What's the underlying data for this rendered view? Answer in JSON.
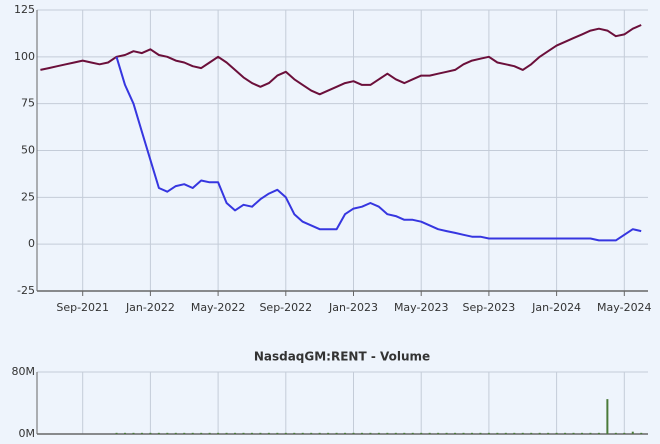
{
  "chart_data": [
    {
      "type": "line",
      "x": [
        5.5,
        6,
        6.5,
        7,
        7.5,
        8,
        8.5,
        9,
        9.5,
        10,
        10.5,
        11,
        11.5,
        12,
        12.5,
        13,
        13.5,
        14,
        14.5,
        15,
        15.5,
        16,
        16.5,
        17,
        17.5,
        18,
        18.5,
        19,
        19.5,
        20,
        20.5,
        21,
        21.5,
        22,
        22.5,
        23,
        23.5,
        24,
        24.5,
        25,
        25.5,
        26,
        26.5,
        27,
        27.5,
        28,
        28.5,
        29,
        29.5,
        30,
        30.5,
        31,
        31.5,
        32,
        32.5,
        33,
        33.5,
        34,
        34.5,
        35,
        35.5,
        36,
        36.5,
        37,
        37.5,
        38,
        38.5,
        39,
        39.5,
        40,
        40.5,
        41
      ],
      "series": [
        {
          "color": "#6b0f3a",
          "values": [
            93,
            94,
            95,
            96,
            97,
            98,
            97,
            96,
            97,
            100,
            101,
            103,
            102,
            104,
            101,
            100,
            98,
            97,
            95,
            94,
            97,
            100,
            97,
            93,
            89,
            86,
            84,
            86,
            90,
            92,
            88,
            85,
            82,
            80,
            82,
            84,
            86,
            87,
            85,
            85,
            88,
            91,
            88,
            86,
            88,
            90,
            90,
            91,
            92,
            93,
            96,
            98,
            99,
            100,
            97,
            96,
            95,
            93,
            96,
            100,
            103,
            106,
            108,
            110,
            112,
            114,
            115,
            114,
            111,
            112,
            115,
            117
          ]
        },
        {
          "color": "#3636e0",
          "values": [
            null,
            null,
            null,
            null,
            null,
            null,
            null,
            null,
            null,
            100,
            85,
            75,
            60,
            45,
            30,
            28,
            31,
            32,
            30,
            34,
            33,
            33,
            22,
            18,
            21,
            20,
            24,
            27,
            29,
            25,
            16,
            12,
            10,
            8,
            8,
            8,
            16,
            19,
            20,
            22,
            20,
            16,
            15,
            13,
            13,
            12,
            10,
            8,
            7,
            6,
            5,
            4,
            4,
            3,
            3,
            3,
            3,
            3,
            3,
            3,
            3,
            3,
            3,
            3,
            3,
            3,
            2,
            2,
            2,
            5,
            8,
            7
          ]
        }
      ],
      "xlim": [
        5.3,
        41.4
      ],
      "xticks": [
        {
          "value": 8,
          "label": "Sep-2021"
        },
        {
          "value": 12,
          "label": "Jan-2022"
        },
        {
          "value": 16,
          "label": "May-2022"
        },
        {
          "value": 20,
          "label": "Sep-2022"
        },
        {
          "value": 24,
          "label": "Jan-2023"
        },
        {
          "value": 28,
          "label": "May-2023"
        },
        {
          "value": 32,
          "label": "Sep-2023"
        },
        {
          "value": 36,
          "label": "Jan-2024"
        },
        {
          "value": 40,
          "label": "May-2024"
        }
      ],
      "ylim": [
        -25,
        125
      ],
      "yticks": [
        -25,
        0,
        25,
        50,
        75,
        100,
        125
      ],
      "grid": true
    },
    {
      "type": "bar",
      "title": "NasdaqGM:RENT - Volume",
      "x": [
        10,
        10.5,
        11,
        11.5,
        12,
        12.5,
        13,
        13.5,
        14,
        14.5,
        15,
        15.5,
        16,
        16.5,
        17,
        17.5,
        18,
        18.5,
        19,
        19.5,
        20,
        20.5,
        21,
        21.5,
        22,
        22.5,
        23,
        23.5,
        24,
        24.5,
        25,
        25.5,
        26,
        26.5,
        27,
        27.5,
        28,
        28.5,
        29,
        29.5,
        30,
        30.5,
        31,
        31.5,
        32,
        32.5,
        33,
        33.5,
        34,
        34.5,
        35,
        35.5,
        36,
        36.5,
        37,
        37.5,
        38,
        38.5,
        39,
        39.5,
        40,
        40.5,
        41
      ],
      "values": [
        1500000,
        1500000,
        1500000,
        1500000,
        1500000,
        1500000,
        1500000,
        1500000,
        1500000,
        1500000,
        1500000,
        1500000,
        1500000,
        1500000,
        1500000,
        1500000,
        1500000,
        1500000,
        1500000,
        1500000,
        1500000,
        1500000,
        1500000,
        1500000,
        1500000,
        1500000,
        1500000,
        1500000,
        1500000,
        1500000,
        1500000,
        1500000,
        1500000,
        1500000,
        1500000,
        1500000,
        1500000,
        1500000,
        1500000,
        1500000,
        1500000,
        1500000,
        1500000,
        1500000,
        1500000,
        1500000,
        1500000,
        1500000,
        1500000,
        1500000,
        1500000,
        1500000,
        1500000,
        1500000,
        1500000,
        1500000,
        1500000,
        1500000,
        45000000,
        1500000,
        1500000,
        3000000,
        1500000
      ],
      "color": "#4a7a3a",
      "xlim": [
        5.3,
        41.4
      ],
      "xticks": [
        8,
        12,
        16,
        20,
        24,
        28,
        32,
        36,
        40
      ],
      "ylim": [
        0,
        80000000
      ],
      "yticks": [
        {
          "value": 0,
          "label": "0M"
        },
        {
          "value": 80000000,
          "label": "80M"
        }
      ],
      "grid": true
    }
  ]
}
